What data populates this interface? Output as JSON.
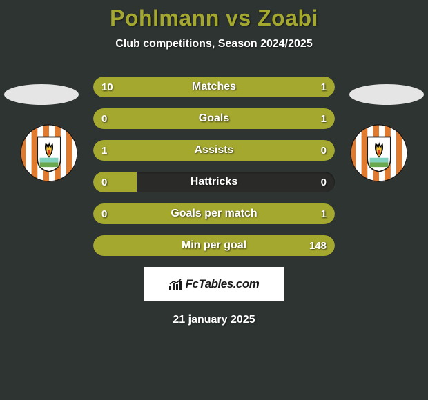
{
  "title": "Pohlmann vs Zoabi",
  "subtitle": "Club competitions, Season 2024/2025",
  "colors": {
    "accent": "#a5a82f",
    "bar_track": "#2a2a28",
    "background": "#2d3432",
    "text": "#ffffff"
  },
  "bars": [
    {
      "label": "Matches",
      "left_value": "10",
      "right_value": "1",
      "left_pct": 85,
      "right_pct": 15
    },
    {
      "label": "Goals",
      "left_value": "0",
      "right_value": "1",
      "left_pct": 18,
      "right_pct": 82
    },
    {
      "label": "Assists",
      "left_value": "1",
      "right_value": "0",
      "left_pct": 82,
      "right_pct": 18
    },
    {
      "label": "Hattricks",
      "left_value": "0",
      "right_value": "0",
      "left_pct": 18,
      "right_pct": 0
    },
    {
      "label": "Goals per match",
      "left_value": "0",
      "right_value": "1",
      "left_pct": 18,
      "right_pct": 82
    },
    {
      "label": "Min per goal",
      "left_value": "",
      "right_value": "148",
      "left_pct": 100,
      "right_pct": 0
    }
  ],
  "watermark": "FcTables.com",
  "dateline": "21 january 2025",
  "badge": {
    "stripes": [
      "#e07a2f",
      "#ffffff"
    ],
    "shield_bg": "#ffffff",
    "flame_colors": [
      "#000000",
      "#f3c22b",
      "#d9422a"
    ],
    "water": "#7fd1c0",
    "grass": "#6aa84f"
  }
}
